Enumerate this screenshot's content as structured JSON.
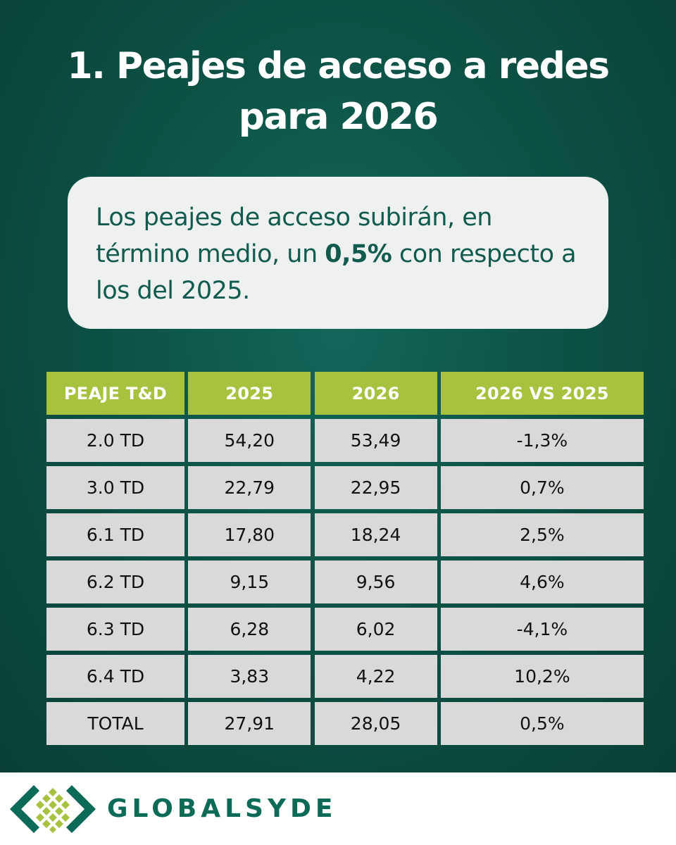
{
  "title": {
    "line1": "1. Peajes de acceso a redes",
    "line2": "para 2026"
  },
  "callout": {
    "before": "Los peajes de acceso subirán, en término medio, un ",
    "highlight": "0,5%",
    "after": " con respecto a los del 2025."
  },
  "table": {
    "headers": [
      "PEAJE T&D",
      "2025",
      "2026",
      "2026 VS 2025"
    ],
    "rows": [
      [
        "2.0 TD",
        "54,20",
        "53,49",
        "-1,3%"
      ],
      [
        "3.0 TD",
        "22,79",
        "22,95",
        "0,7%"
      ],
      [
        "6.1 TD",
        "17,80",
        "18,24",
        "2,5%"
      ],
      [
        "6.2 TD",
        "9,15",
        "9,56",
        "4,6%"
      ],
      [
        "6.3 TD",
        "6,28",
        "6,02",
        "-4,1%"
      ],
      [
        "6.4 TD",
        "3,83",
        "4,22",
        "10,2%"
      ],
      [
        "TOTAL",
        "27,91",
        "28,05",
        "0,5%"
      ]
    ]
  },
  "brand": {
    "name": "GLOBALSYDE",
    "logo_icon": "diamond-grid-logo-icon",
    "colors": {
      "dark_green": "#0d5246",
      "accent_green": "#a7c23f",
      "text_green": "#105b4e",
      "logo_green": "#0b6b56"
    }
  }
}
